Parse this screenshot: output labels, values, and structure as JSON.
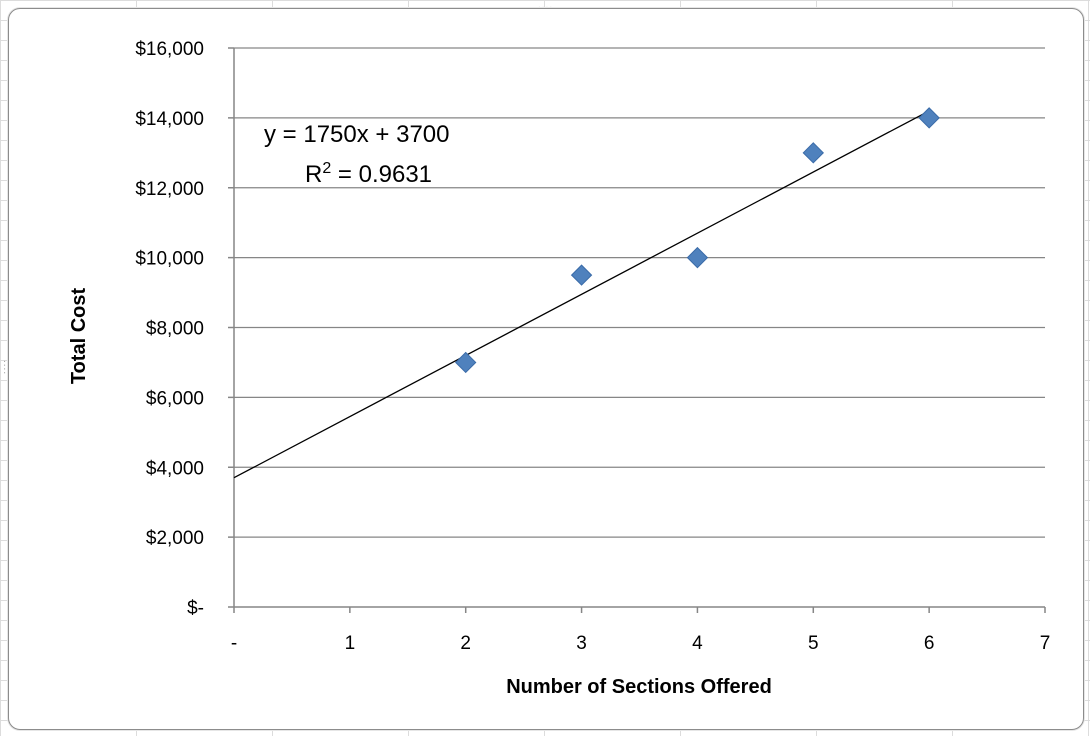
{
  "chart_data": {
    "type": "scatter",
    "title": "",
    "xlabel": "Number of Sections Offered",
    "ylabel": "Total Cost",
    "xlim": [
      0,
      7
    ],
    "ylim": [
      0,
      16000
    ],
    "x_ticks": [
      0,
      1,
      2,
      3,
      4,
      5,
      6,
      7
    ],
    "x_tick_labels": [
      "-",
      "1",
      "2",
      "3",
      "4",
      "5",
      "6",
      "7"
    ],
    "y_ticks": [
      0,
      2000,
      4000,
      6000,
      8000,
      10000,
      12000,
      14000,
      16000
    ],
    "y_tick_labels": [
      "$-",
      "$2,000",
      "$4,000",
      "$6,000",
      "$8,000",
      "$10,000",
      "$12,000",
      "$14,000",
      "$16,000"
    ],
    "grid": "horizontal",
    "legend": "none",
    "marker": "diamond",
    "marker_color": "#4F81BD",
    "series": [
      {
        "x": [
          2,
          3,
          4,
          5,
          6
        ],
        "y": [
          7000,
          9500,
          10000,
          13000,
          14000
        ]
      }
    ],
    "trendline": {
      "type": "linear",
      "slope": 1750,
      "intercept": 3700,
      "x_range": [
        0,
        6
      ],
      "color": "#000000",
      "equation_label": "y = 1750x + 3700",
      "r2_prefix": "R",
      "r2_sup": "2",
      "r2_value": " = 0.9631"
    }
  }
}
